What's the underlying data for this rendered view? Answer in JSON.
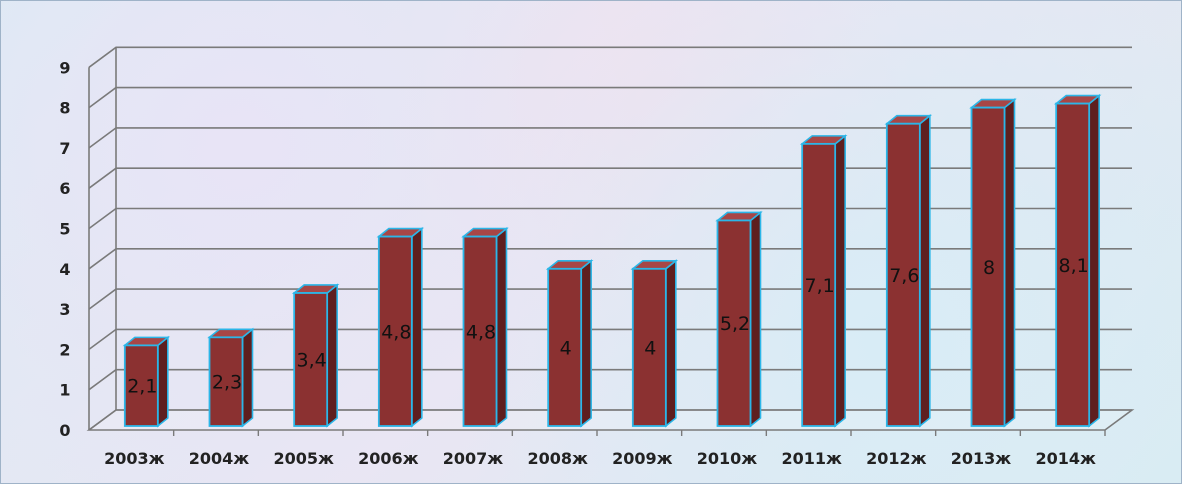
{
  "chart_data": {
    "type": "bar",
    "categories": [
      "2003ж",
      "2004ж",
      "2005ж",
      "2006ж",
      "2007ж",
      "2008ж",
      "2009ж",
      "2010ж",
      "2011ж",
      "2012ж",
      "2013ж",
      "2014ж"
    ],
    "values": [
      2.1,
      2.3,
      3.4,
      4.8,
      4.8,
      4,
      4,
      5.2,
      7.1,
      7.6,
      8,
      8.1
    ],
    "data_labels": [
      "2,1",
      "2,3",
      "3,4",
      "4,8",
      "4,8",
      "4",
      "4",
      "5,2",
      "7,1",
      "7,6",
      "8",
      "8,1"
    ],
    "y_ticks": [
      "0",
      "1",
      "2",
      "3",
      "4",
      "5",
      "6",
      "7",
      "8",
      "9"
    ],
    "ylim": [
      0,
      9
    ],
    "title": "",
    "xlabel": "",
    "ylabel": "",
    "grid": true,
    "style": "3d-column",
    "colors": {
      "bar_front": "#8b3131",
      "bar_side": "#5e1f1f",
      "bar_top": "#a84646",
      "bar_edge": "#2bb6e8",
      "grid": "#7a7a7a"
    }
  }
}
